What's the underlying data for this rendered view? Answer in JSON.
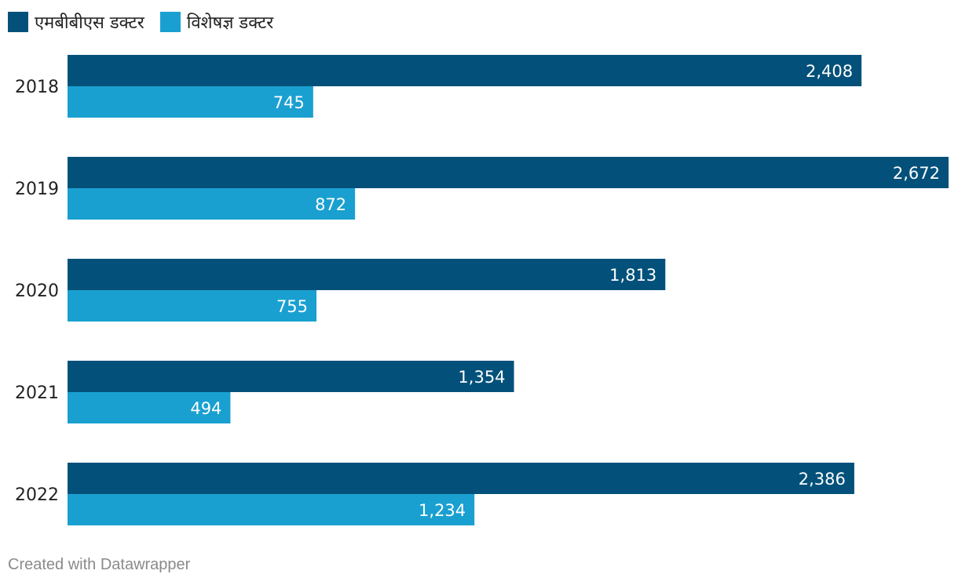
{
  "chart_data": {
    "type": "bar",
    "orientation": "horizontal",
    "categories": [
      "2018",
      "2019",
      "2020",
      "2021",
      "2022"
    ],
    "series": [
      {
        "name": "एमबीबीएस डक्टर",
        "color": "#03517a",
        "values": [
          2408,
          2672,
          1813,
          1354,
          2386
        ]
      },
      {
        "name": "विशेषज्ञ डक्टर",
        "color": "#19a0d0",
        "values": [
          745,
          872,
          755,
          494,
          1234
        ]
      }
    ],
    "xlim": [
      0,
      2672
    ],
    "legend": "top-left",
    "grid": false
  },
  "footer": {
    "credit": "Created with Datawrapper"
  }
}
